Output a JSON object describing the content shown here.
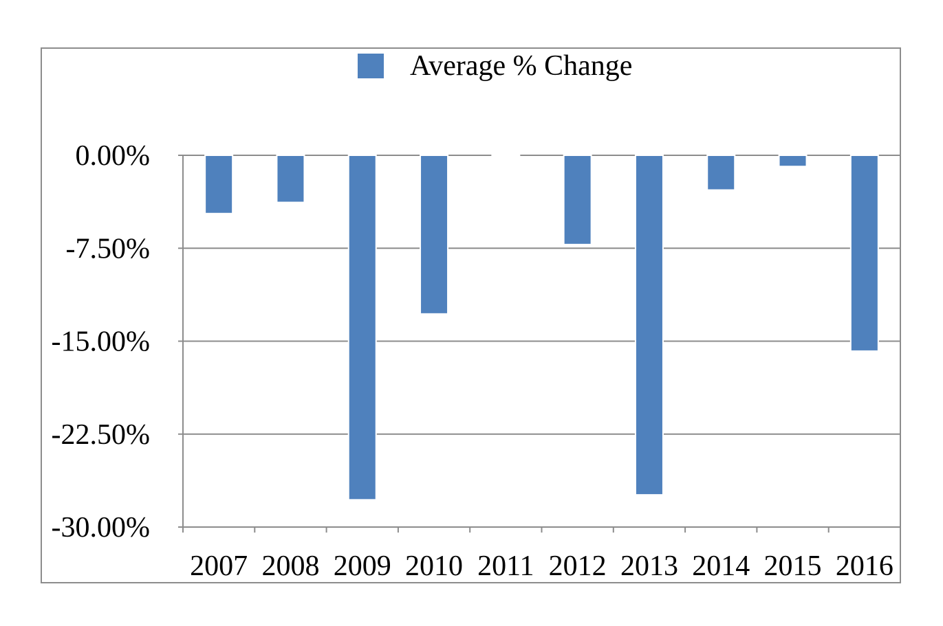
{
  "chart_data": {
    "type": "bar",
    "categories": [
      "2007",
      "2008",
      "2009",
      "2010",
      "2011",
      "2012",
      "2013",
      "2014",
      "2015",
      "2016"
    ],
    "series": [
      {
        "name": "Average % Change",
        "values": [
          -4.7,
          -3.8,
          -27.8,
          -12.8,
          -0.1,
          -7.2,
          -27.4,
          -2.8,
          -0.9,
          -15.8
        ]
      }
    ],
    "ylim": [
      -30,
      0
    ],
    "yticks": [
      0,
      -7.5,
      -15,
      -22.5,
      -30
    ],
    "ytick_labels": [
      "0.00%",
      "-7.50%",
      "-15.00%",
      "-22.50%",
      "-30.00%"
    ],
    "grid": true,
    "legend_position": "top-center",
    "colors": {
      "bar": "#4f81bd",
      "grid": "#8c8c8c",
      "frame": "#8c8c8c"
    }
  }
}
